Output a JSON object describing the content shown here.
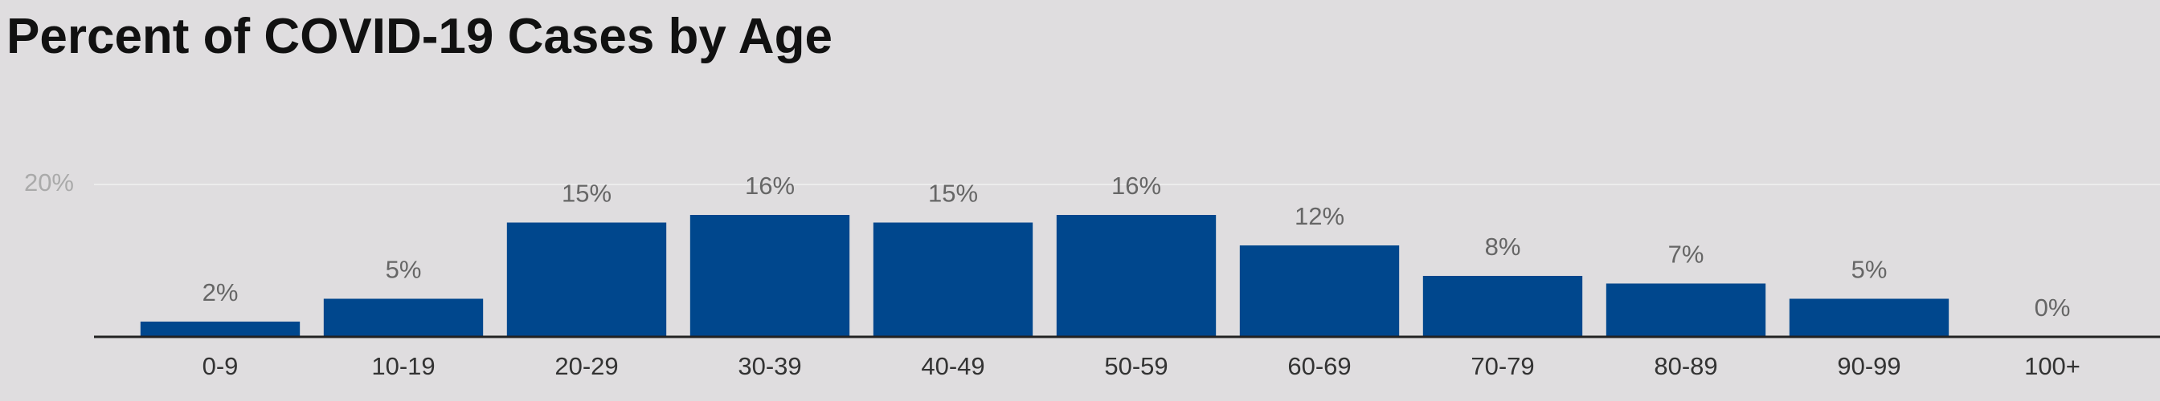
{
  "chart_data": {
    "type": "bar",
    "title": "Percent of COVID-19 Cases by Age",
    "categories": [
      "0-9",
      "10-19",
      "20-29",
      "30-39",
      "40-49",
      "50-59",
      "60-69",
      "70-79",
      "80-89",
      "90-99",
      "100+"
    ],
    "values": [
      2,
      5,
      15,
      16,
      15,
      16,
      12,
      8,
      7,
      5,
      0
    ],
    "value_labels": [
      "2%",
      "5%",
      "15%",
      "16%",
      "15%",
      "16%",
      "12%",
      "8%",
      "7%",
      "5%",
      "0%"
    ],
    "color": "#00478d",
    "ylim": [
      0,
      20
    ],
    "yticks": [
      {
        "value": 20,
        "label": "20%"
      }
    ],
    "grid": true
  }
}
